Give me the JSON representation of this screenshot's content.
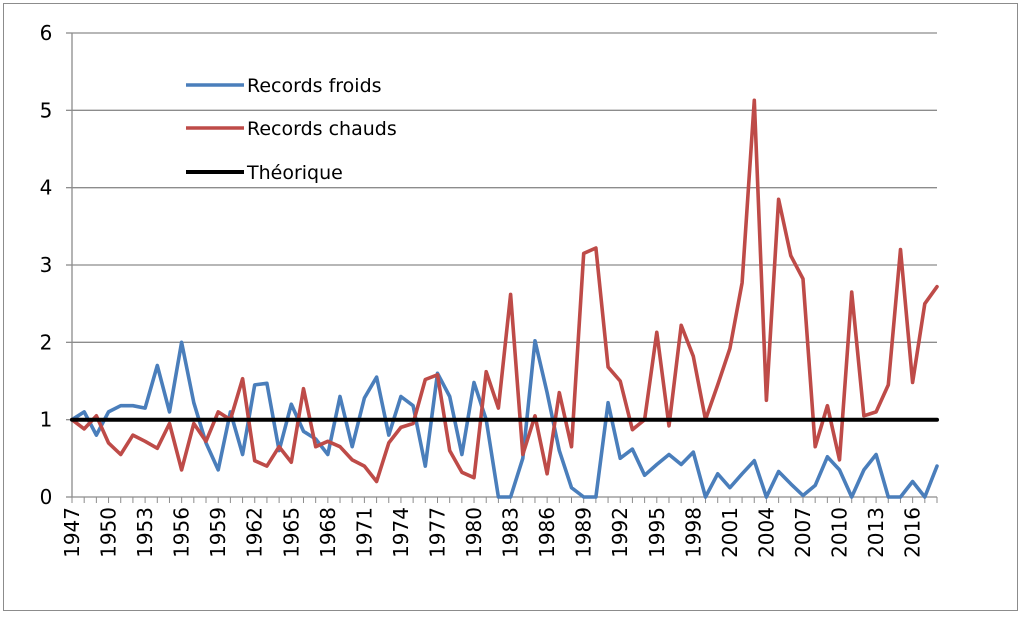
{
  "chart_data": {
    "type": "line",
    "x": [
      "1947",
      "1948",
      "1949",
      "1950",
      "1951",
      "1952",
      "1953",
      "1954",
      "1955",
      "1956",
      "1957",
      "1958",
      "1959",
      "1960",
      "1961",
      "1962",
      "1963",
      "1964",
      "1965",
      "1966",
      "1967",
      "1968",
      "1969",
      "1970",
      "1971",
      "1972",
      "1973",
      "1974",
      "1975",
      "1976",
      "1977",
      "1978",
      "1979",
      "1980",
      "1981",
      "1982",
      "1983",
      "1984",
      "1985",
      "1986",
      "1987",
      "1988",
      "1989",
      "1990",
      "1991",
      "1992",
      "1993",
      "1994",
      "1995",
      "1996",
      "1997",
      "1998",
      "1999",
      "2000",
      "2001",
      "2002",
      "2003",
      "2004",
      "2005",
      "2006",
      "2007",
      "2008",
      "2009",
      "2010",
      "2011",
      "2012",
      "2013",
      "2014",
      "2015",
      "2016",
      "2017",
      "2018"
    ],
    "x_tick_labels": [
      "1947",
      "1950",
      "1953",
      "1956",
      "1959",
      "1962",
      "1965",
      "1968",
      "1971",
      "1974",
      "1977",
      "1980",
      "1983",
      "1986",
      "1989",
      "1992",
      "1995",
      "1998",
      "2001",
      "2004",
      "2007",
      "2010",
      "2013",
      "2016"
    ],
    "series": [
      {
        "name": "Records froids",
        "color": "#4A7EBB",
        "values": [
          1.0,
          1.1,
          0.8,
          1.1,
          1.18,
          1.18,
          1.15,
          1.7,
          1.1,
          2.0,
          1.22,
          0.7,
          0.35,
          1.1,
          0.55,
          1.45,
          1.47,
          0.6,
          1.2,
          0.85,
          0.75,
          0.55,
          1.3,
          0.65,
          1.28,
          1.55,
          0.8,
          1.3,
          1.18,
          0.4,
          1.6,
          1.3,
          0.55,
          1.48,
          1.0,
          0.0,
          0.0,
          0.5,
          2.02,
          1.35,
          0.6,
          0.12,
          0.0,
          0.0,
          1.22,
          0.5,
          0.62,
          0.28,
          0.42,
          0.55,
          0.42,
          0.58,
          0.0,
          0.3,
          0.12,
          0.3,
          0.47,
          0.0,
          0.33,
          0.17,
          0.02,
          0.15,
          0.52,
          0.35,
          0.0,
          0.35,
          0.55,
          0.0,
          0.0,
          0.2,
          0.0,
          0.4
        ]
      },
      {
        "name": "Records chauds",
        "color": "#BE4B48",
        "values": [
          1.0,
          0.88,
          1.05,
          0.7,
          0.55,
          0.8,
          0.72,
          0.63,
          0.95,
          0.35,
          0.95,
          0.72,
          1.1,
          1.0,
          1.53,
          0.47,
          0.4,
          0.65,
          0.45,
          1.4,
          0.65,
          0.72,
          0.65,
          0.48,
          0.4,
          0.2,
          0.7,
          0.9,
          0.95,
          1.52,
          1.58,
          0.6,
          0.32,
          0.25,
          1.62,
          1.15,
          2.62,
          0.55,
          1.05,
          0.3,
          1.35,
          0.65,
          3.15,
          3.22,
          1.68,
          1.5,
          0.87,
          1.0,
          2.13,
          0.92,
          2.22,
          1.82,
          1.0,
          1.45,
          1.92,
          2.77,
          5.13,
          1.25,
          3.85,
          3.12,
          2.82,
          0.65,
          1.18,
          0.48,
          2.65,
          1.05,
          1.1,
          1.45,
          3.2,
          1.48,
          2.5,
          2.72
        ]
      },
      {
        "name": "Théorique",
        "color": "#000000",
        "values": [
          1,
          1,
          1,
          1,
          1,
          1,
          1,
          1,
          1,
          1,
          1,
          1,
          1,
          1,
          1,
          1,
          1,
          1,
          1,
          1,
          1,
          1,
          1,
          1,
          1,
          1,
          1,
          1,
          1,
          1,
          1,
          1,
          1,
          1,
          1,
          1,
          1,
          1,
          1,
          1,
          1,
          1,
          1,
          1,
          1,
          1,
          1,
          1,
          1,
          1,
          1,
          1,
          1,
          1,
          1,
          1,
          1,
          1,
          1,
          1,
          1,
          1,
          1,
          1,
          1,
          1,
          1,
          1,
          1,
          1,
          1,
          1
        ]
      }
    ],
    "y_ticks": [
      "0",
      "1",
      "2",
      "3",
      "4",
      "5",
      "6"
    ],
    "ylim": [
      0,
      6
    ],
    "title": "",
    "xlabel": "",
    "ylabel": "",
    "grid": "horizontal",
    "legend_position": "top-left"
  }
}
